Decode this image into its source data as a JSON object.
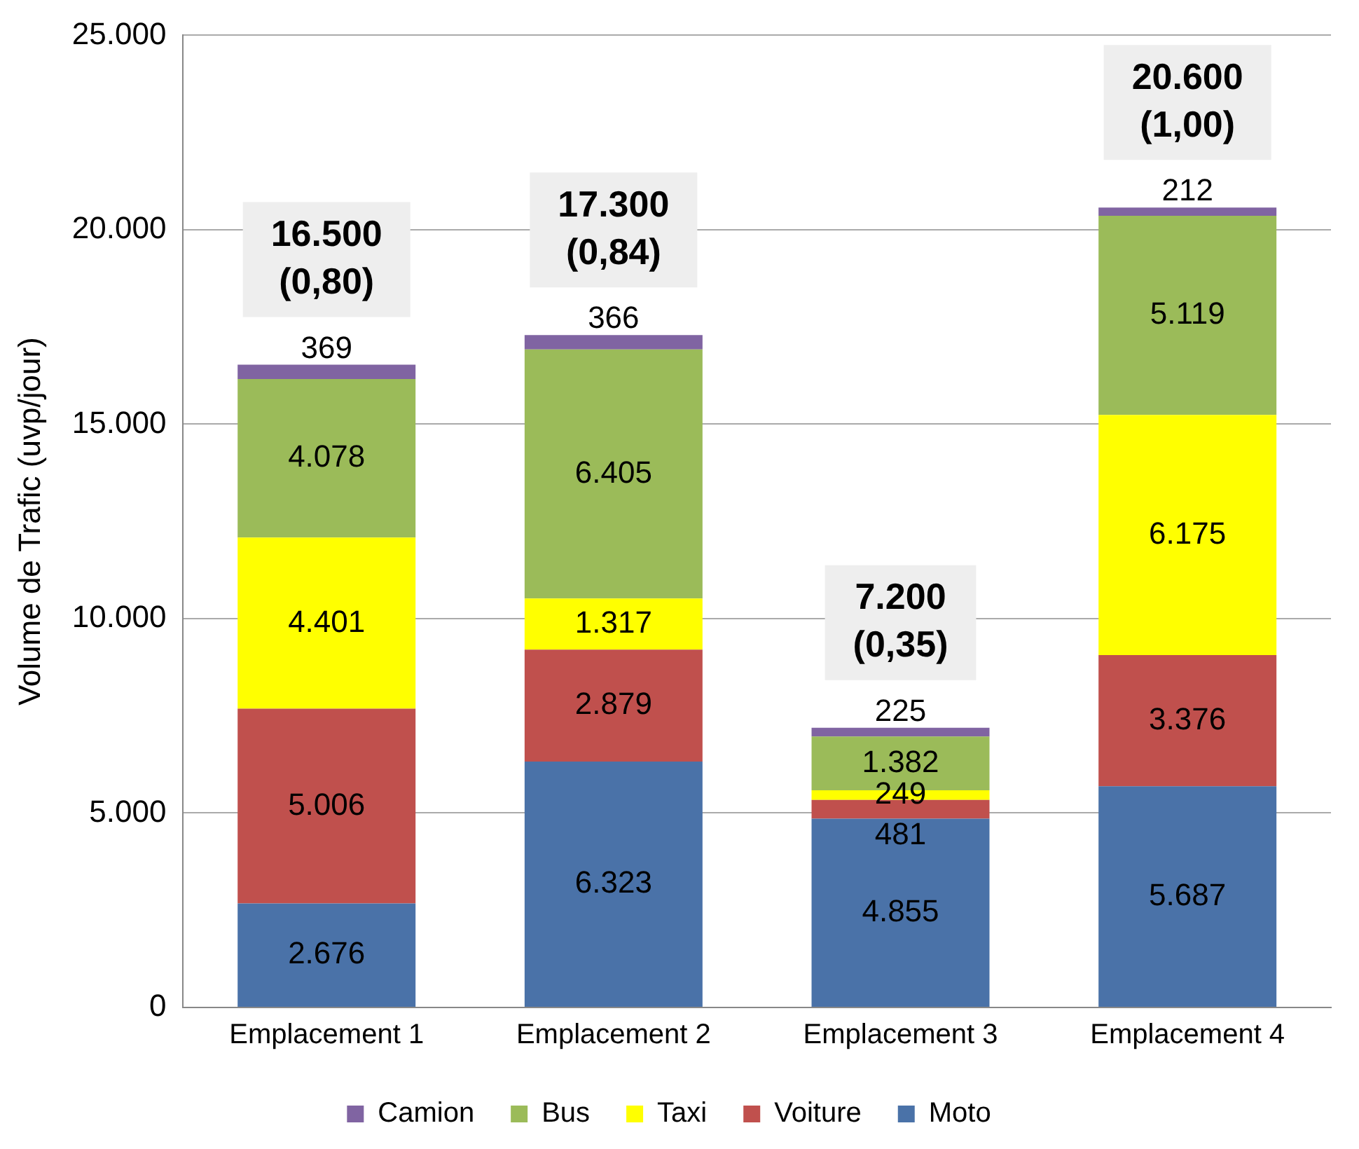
{
  "chart_data": {
    "type": "bar",
    "stacked": true,
    "ylabel": "Volume de Trafic (uvp/jour)",
    "categories": [
      "Emplacement 1",
      "Emplacement 2",
      "Emplacement 3",
      "Emplacement 4"
    ],
    "series": [
      {
        "name": "Moto",
        "color": "#4a72a8",
        "values": [
          2676,
          6323,
          4855,
          5687
        ],
        "value_labels": [
          "2.676",
          "6.323",
          "4.855",
          "5.687"
        ]
      },
      {
        "name": "Voiture",
        "color": "#c0504d",
        "values": [
          5006,
          2879,
          481,
          3376
        ],
        "value_labels": [
          "5.006",
          "2.879",
          "481",
          "3.376"
        ]
      },
      {
        "name": "Taxi",
        "color": "#ffff00",
        "values": [
          4401,
          1317,
          249,
          6175
        ],
        "value_labels": [
          "4.401",
          "1.317",
          "249",
          "6.175"
        ]
      },
      {
        "name": "Bus",
        "color": "#9bbb59",
        "values": [
          4078,
          6405,
          1382,
          5119
        ],
        "value_labels": [
          "4.078",
          "6.405",
          "1.382",
          "5.119"
        ]
      },
      {
        "name": "Camion",
        "color": "#8064a2",
        "values": [
          369,
          366,
          225,
          212
        ],
        "value_labels": [
          "369",
          "366",
          "225",
          "212"
        ]
      }
    ],
    "totals": [
      "16.500 (0,80)",
      "17.300 (0,84)",
      "7.200 (0,35)",
      "20.600 (1,00)"
    ],
    "ylim": [
      0,
      25000
    ],
    "yticks": [
      0,
      {
        "value": 5000,
        "label": "5.000"
      },
      {
        "value": 10000,
        "label": "10.000"
      },
      {
        "value": 15000,
        "label": "15.000"
      },
      {
        "value": 20000,
        "label": "20.000"
      },
      {
        "value": 25000,
        "label": "25.000"
      }
    ],
    "grid": "y",
    "legend": "bottom"
  }
}
